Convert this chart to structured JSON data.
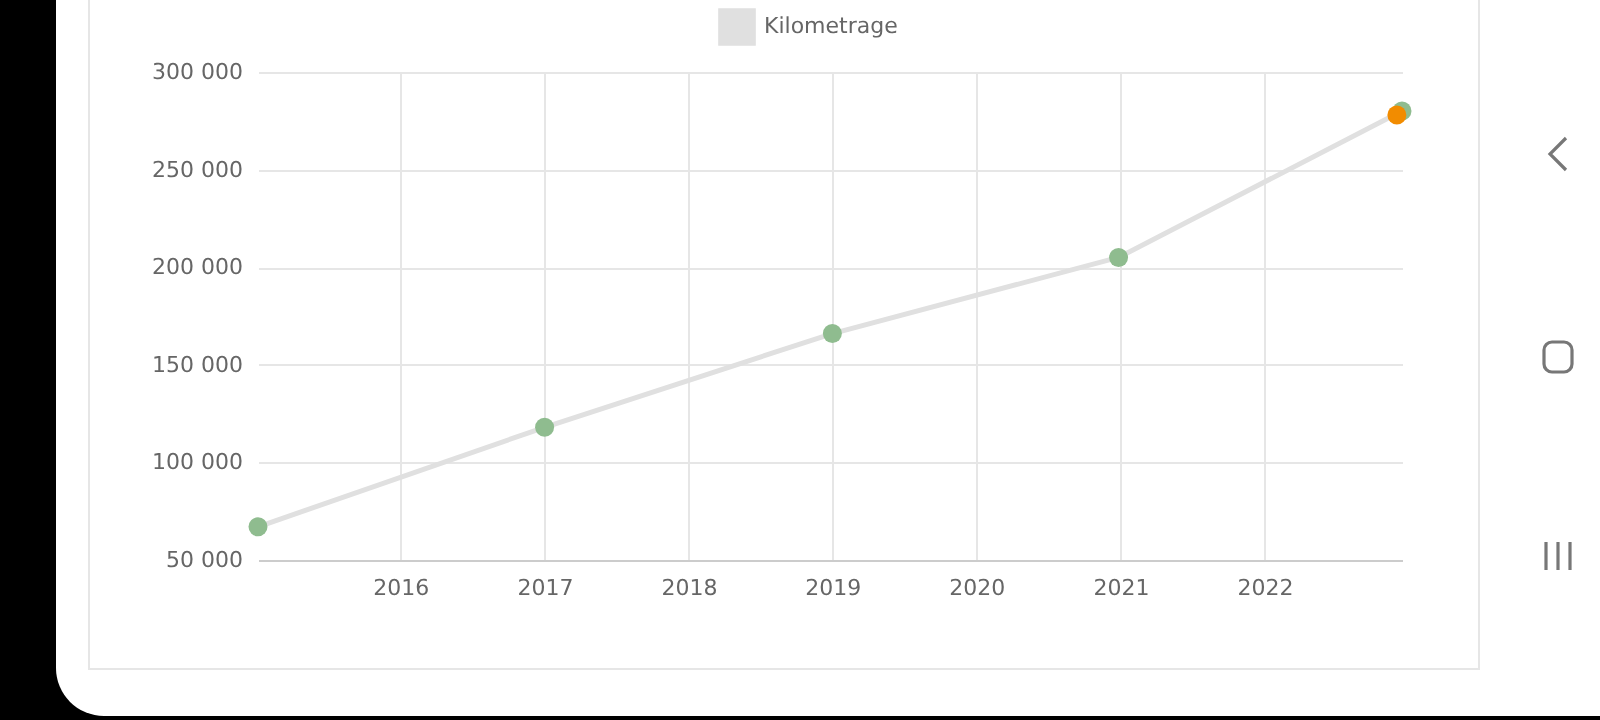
{
  "chart_data": {
    "type": "line",
    "x": [
      "2015-01-05",
      "2017-01-01",
      "2019-01-01",
      "2020-12-27",
      "2022-12-16"
    ],
    "series": [
      {
        "name": "Kilometrage",
        "type": "line",
        "color": "#e0e0e0",
        "marker": "none",
        "values": [
          67000,
          118000,
          166000,
          205000,
          280000
        ]
      },
      {
        "type": "scatter",
        "color": "#8fbc8f",
        "marker": "circle",
        "values": [
          67000,
          118000,
          166000,
          205000,
          280000
        ]
      },
      {
        "type": "scatter",
        "color": "#f28c00",
        "marker": "circle",
        "x": [
          "2022-12-03"
        ],
        "values": [
          278000
        ]
      }
    ],
    "xlim": [
      "2015-01-05",
      "2022-12-16"
    ],
    "xticks": [
      {
        "value": "2016-01-01",
        "label": "2016"
      },
      {
        "value": "2017-01-01",
        "label": "2017"
      },
      {
        "value": "2018-01-01",
        "label": "2018"
      },
      {
        "value": "2019-01-01",
        "label": "2019"
      },
      {
        "value": "2020-01-01",
        "label": "2020"
      },
      {
        "value": "2021-01-01",
        "label": "2021"
      },
      {
        "value": "2022-01-01",
        "label": "2022"
      }
    ],
    "ylim": [
      50000,
      300000
    ],
    "yticks": [
      {
        "value": 50000,
        "label": "50 000"
      },
      {
        "value": 100000,
        "label": "100 000"
      },
      {
        "value": 150000,
        "label": "150 000"
      },
      {
        "value": 200000,
        "label": "200 000"
      },
      {
        "value": 250000,
        "label": "250 000"
      },
      {
        "value": 300000,
        "label": "300 000"
      }
    ],
    "grid": true,
    "legend": "top"
  }
}
